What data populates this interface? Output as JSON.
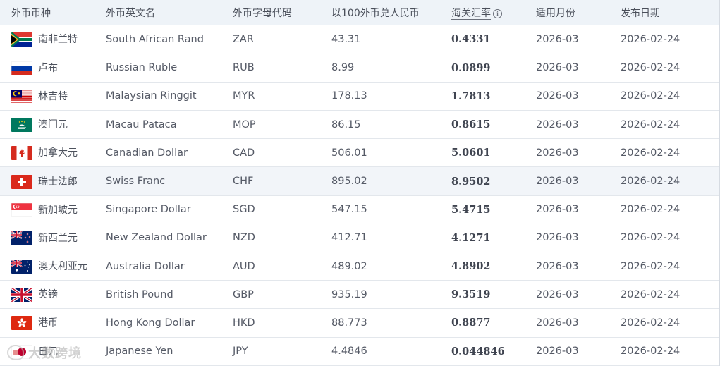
{
  "headers": {
    "currency": "外币币种",
    "english_name": "外币英文名",
    "code": "外币字母代码",
    "per100": "以100外币兑人民币",
    "customs_rate": "海关汇率",
    "month": "适用月份",
    "publish_date": "发布日期"
  },
  "rows": [
    {
      "flag": "south-africa-flag-icon",
      "cn": "南非兰特",
      "en": "South African Rand",
      "code": "ZAR",
      "per100": "43.31",
      "rate": "0.4331",
      "month": "2026-03",
      "date": "2026-02-24"
    },
    {
      "flag": "russia-flag-icon",
      "cn": "卢布",
      "en": "Russian Ruble",
      "code": "RUB",
      "per100": "8.99",
      "rate": "0.0899",
      "month": "2026-03",
      "date": "2026-02-24"
    },
    {
      "flag": "malaysia-flag-icon",
      "cn": "林吉特",
      "en": "Malaysian Ringgit",
      "code": "MYR",
      "per100": "178.13",
      "rate": "1.7813",
      "month": "2026-03",
      "date": "2026-02-24"
    },
    {
      "flag": "macau-flag-icon",
      "cn": "澳门元",
      "en": "Macau Pataca",
      "code": "MOP",
      "per100": "86.15",
      "rate": "0.8615",
      "month": "2026-03",
      "date": "2026-02-24"
    },
    {
      "flag": "canada-flag-icon",
      "cn": "加拿大元",
      "en": "Canadian Dollar",
      "code": "CAD",
      "per100": "506.01",
      "rate": "5.0601",
      "month": "2026-03",
      "date": "2026-02-24"
    },
    {
      "flag": "switzerland-flag-icon",
      "cn": "瑞士法郎",
      "en": "Swiss Franc",
      "code": "CHF",
      "per100": "895.02",
      "rate": "8.9502",
      "month": "2026-03",
      "date": "2026-02-24",
      "highlight": true
    },
    {
      "flag": "singapore-flag-icon",
      "cn": "新加坡元",
      "en": "Singapore Dollar",
      "code": "SGD",
      "per100": "547.15",
      "rate": "5.4715",
      "month": "2026-03",
      "date": "2026-02-24"
    },
    {
      "flag": "new-zealand-flag-icon",
      "cn": "新西兰元",
      "en": "New Zealand Dollar",
      "code": "NZD",
      "per100": "412.71",
      "rate": "4.1271",
      "month": "2026-03",
      "date": "2026-02-24"
    },
    {
      "flag": "australia-flag-icon",
      "cn": "澳大利亚元",
      "en": "Australia Dollar",
      "code": "AUD",
      "per100": "489.02",
      "rate": "4.8902",
      "month": "2026-03",
      "date": "2026-02-24"
    },
    {
      "flag": "uk-flag-icon",
      "cn": "英镑",
      "en": "British Pound",
      "code": "GBP",
      "per100": "935.19",
      "rate": "9.3519",
      "month": "2026-03",
      "date": "2026-02-24"
    },
    {
      "flag": "hong-kong-flag-icon",
      "cn": "港币",
      "en": "Hong Kong Dollar",
      "code": "HKD",
      "per100": "88.773",
      "rate": "0.8877",
      "month": "2026-03",
      "date": "2026-02-24"
    },
    {
      "flag": "japan-flag-icon",
      "cn": "日元",
      "en": "Japanese Yen",
      "code": "JPY",
      "per100": "4.4846",
      "rate": "0.044846",
      "month": "2026-03",
      "date": "2026-02-24"
    }
  ],
  "watermark": "大数跨境"
}
